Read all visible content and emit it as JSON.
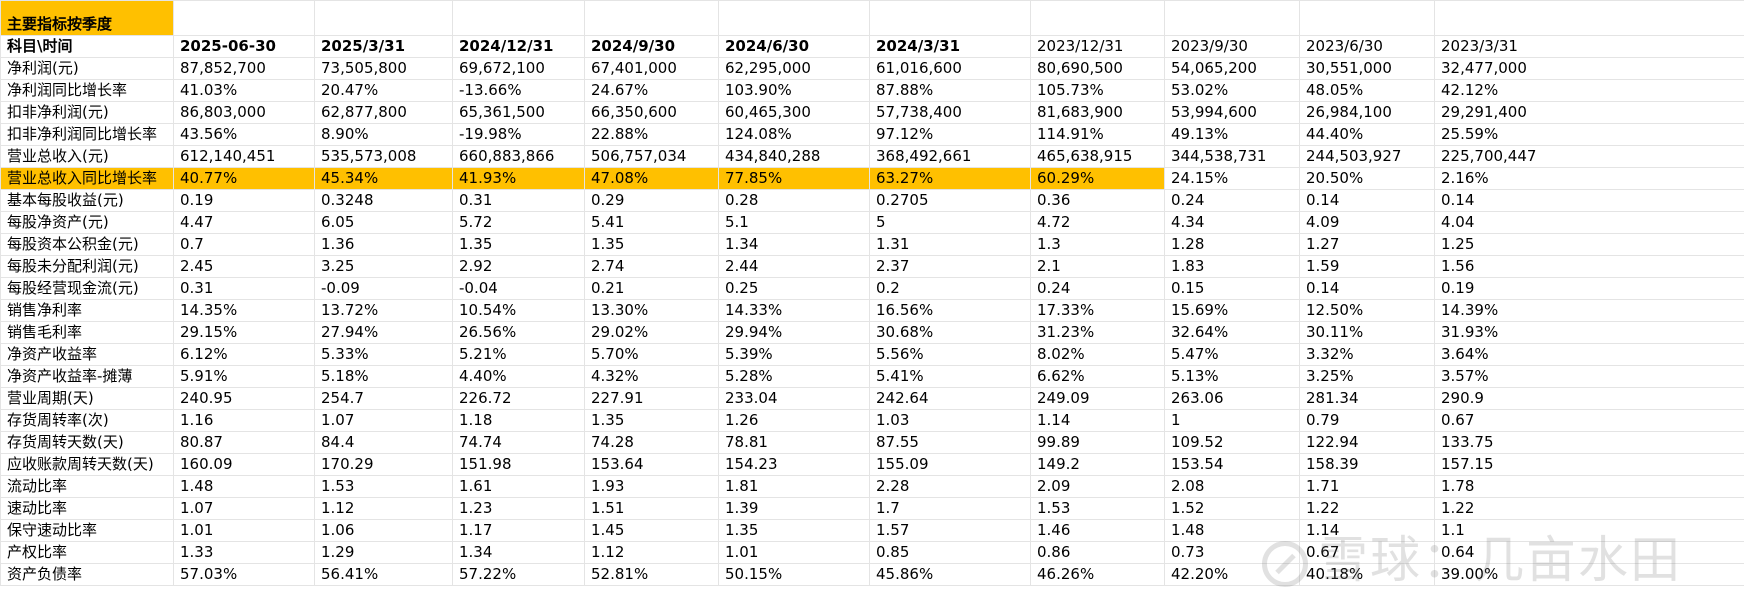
{
  "sheet": {
    "title": "主要指标按季度",
    "header_label": "科目\\时间",
    "periods": [
      "2025-06-30",
      "2025/3/31",
      "2024/12/31",
      "2024/9/30",
      "2024/6/30",
      "2024/3/31",
      "2023/12/31",
      "2023/9/30",
      "2023/6/30",
      "2023/3/31"
    ],
    "highlight_color": "#ffc000",
    "rows": [
      {
        "label": "净利润(元)",
        "values": [
          "87,852,700",
          "73,505,800",
          "69,672,100",
          "67,401,000",
          "62,295,000",
          "61,016,600",
          "80,690,500",
          "54,065,200",
          "30,551,000",
          "32,477,000"
        ]
      },
      {
        "label": "净利润同比增长率",
        "values": [
          "41.03%",
          "20.47%",
          "-13.66%",
          "24.67%",
          "103.90%",
          "87.88%",
          "105.73%",
          "53.02%",
          "48.05%",
          "42.12%"
        ]
      },
      {
        "label": "扣非净利润(元)",
        "values": [
          "86,803,000",
          "62,877,800",
          "65,361,500",
          "66,350,600",
          "60,465,300",
          "57,738,400",
          "81,683,900",
          "53,994,600",
          "26,984,100",
          "29,291,400"
        ]
      },
      {
        "label": "扣非净利润同比增长率",
        "values": [
          "43.56%",
          "8.90%",
          "-19.98%",
          "22.88%",
          "124.08%",
          "97.12%",
          "114.91%",
          "49.13%",
          "44.40%",
          "25.59%"
        ]
      },
      {
        "label": "营业总收入(元)",
        "values": [
          "612,140,451",
          "535,573,008",
          "660,883,866",
          "506,757,034",
          "434,840,288",
          "368,492,661",
          "465,638,915",
          "344,538,731",
          "244,503,927",
          "225,700,447"
        ]
      },
      {
        "label": "营业总收入同比增长率",
        "values": [
          "40.77%",
          "45.34%",
          "41.93%",
          "47.08%",
          "77.85%",
          "63.27%",
          "60.29%",
          "24.15%",
          "20.50%",
          "2.16%"
        ]
      },
      {
        "label": "基本每股收益(元)",
        "values": [
          "0.19",
          "0.3248",
          "0.31",
          "0.29",
          "0.28",
          "0.2705",
          "0.36",
          "0.24",
          "0.14",
          "0.14"
        ]
      },
      {
        "label": "每股净资产(元)",
        "values": [
          "4.47",
          "6.05",
          "5.72",
          "5.41",
          "5.1",
          "5",
          "4.72",
          "4.34",
          "4.09",
          "4.04"
        ]
      },
      {
        "label": "每股资本公积金(元)",
        "values": [
          "0.7",
          "1.36",
          "1.35",
          "1.35",
          "1.34",
          "1.31",
          "1.3",
          "1.28",
          "1.27",
          "1.25"
        ]
      },
      {
        "label": "每股未分配利润(元)",
        "values": [
          "2.45",
          "3.25",
          "2.92",
          "2.74",
          "2.44",
          "2.37",
          "2.1",
          "1.83",
          "1.59",
          "1.56"
        ]
      },
      {
        "label": "每股经营现金流(元)",
        "values": [
          "0.31",
          "-0.09",
          "-0.04",
          "0.21",
          "0.25",
          "0.2",
          "0.24",
          "0.15",
          "0.14",
          "0.19"
        ]
      },
      {
        "label": "销售净利率",
        "values": [
          "14.35%",
          "13.72%",
          "10.54%",
          "13.30%",
          "14.33%",
          "16.56%",
          "17.33%",
          "15.69%",
          "12.50%",
          "14.39%"
        ]
      },
      {
        "label": "销售毛利率",
        "values": [
          "29.15%",
          "27.94%",
          "26.56%",
          "29.02%",
          "29.94%",
          "30.68%",
          "31.23%",
          "32.64%",
          "30.11%",
          "31.93%"
        ]
      },
      {
        "label": "净资产收益率",
        "values": [
          "6.12%",
          "5.33%",
          "5.21%",
          "5.70%",
          "5.39%",
          "5.56%",
          "8.02%",
          "5.47%",
          "3.32%",
          "3.64%"
        ]
      },
      {
        "label": "净资产收益率-摊薄",
        "values": [
          "5.91%",
          "5.18%",
          "4.40%",
          "4.32%",
          "5.28%",
          "5.41%",
          "6.62%",
          "5.13%",
          "3.25%",
          "3.57%"
        ]
      },
      {
        "label": "营业周期(天)",
        "values": [
          "240.95",
          "254.7",
          "226.72",
          "227.91",
          "233.04",
          "242.64",
          "249.09",
          "263.06",
          "281.34",
          "290.9"
        ]
      },
      {
        "label": "存货周转率(次)",
        "values": [
          "1.16",
          "1.07",
          "1.18",
          "1.35",
          "1.26",
          "1.03",
          "1.14",
          "1",
          "0.79",
          "0.67"
        ]
      },
      {
        "label": "存货周转天数(天)",
        "values": [
          "80.87",
          "84.4",
          "74.74",
          "74.28",
          "78.81",
          "87.55",
          "99.89",
          "109.52",
          "122.94",
          "133.75"
        ]
      },
      {
        "label": "应收账款周转天数(天)",
        "values": [
          "160.09",
          "170.29",
          "151.98",
          "153.64",
          "154.23",
          "155.09",
          "149.2",
          "153.54",
          "158.39",
          "157.15"
        ]
      },
      {
        "label": "流动比率",
        "values": [
          "1.48",
          "1.53",
          "1.61",
          "1.93",
          "1.81",
          "2.28",
          "2.09",
          "2.08",
          "1.71",
          "1.78"
        ]
      },
      {
        "label": "速动比率",
        "values": [
          "1.07",
          "1.12",
          "1.23",
          "1.51",
          "1.39",
          "1.7",
          "1.53",
          "1.52",
          "1.22",
          "1.22"
        ]
      },
      {
        "label": "保守速动比率",
        "values": [
          "1.01",
          "1.06",
          "1.17",
          "1.45",
          "1.35",
          "1.57",
          "1.46",
          "1.48",
          "1.14",
          "1.1"
        ]
      },
      {
        "label": "产权比率",
        "values": [
          "1.33",
          "1.29",
          "1.34",
          "1.12",
          "1.01",
          "0.85",
          "0.86",
          "0.73",
          "0.67",
          "0.64"
        ]
      },
      {
        "label": "资产负债率",
        "values": [
          "57.03%",
          "56.41%",
          "57.22%",
          "52.81%",
          "50.15%",
          "45.86%",
          "46.26%",
          "42.20%",
          "40.18%",
          "39.00%"
        ]
      }
    ]
  },
  "watermark": {
    "text": "雪球：几亩水田",
    "icon": "snowball-logo-icon"
  }
}
